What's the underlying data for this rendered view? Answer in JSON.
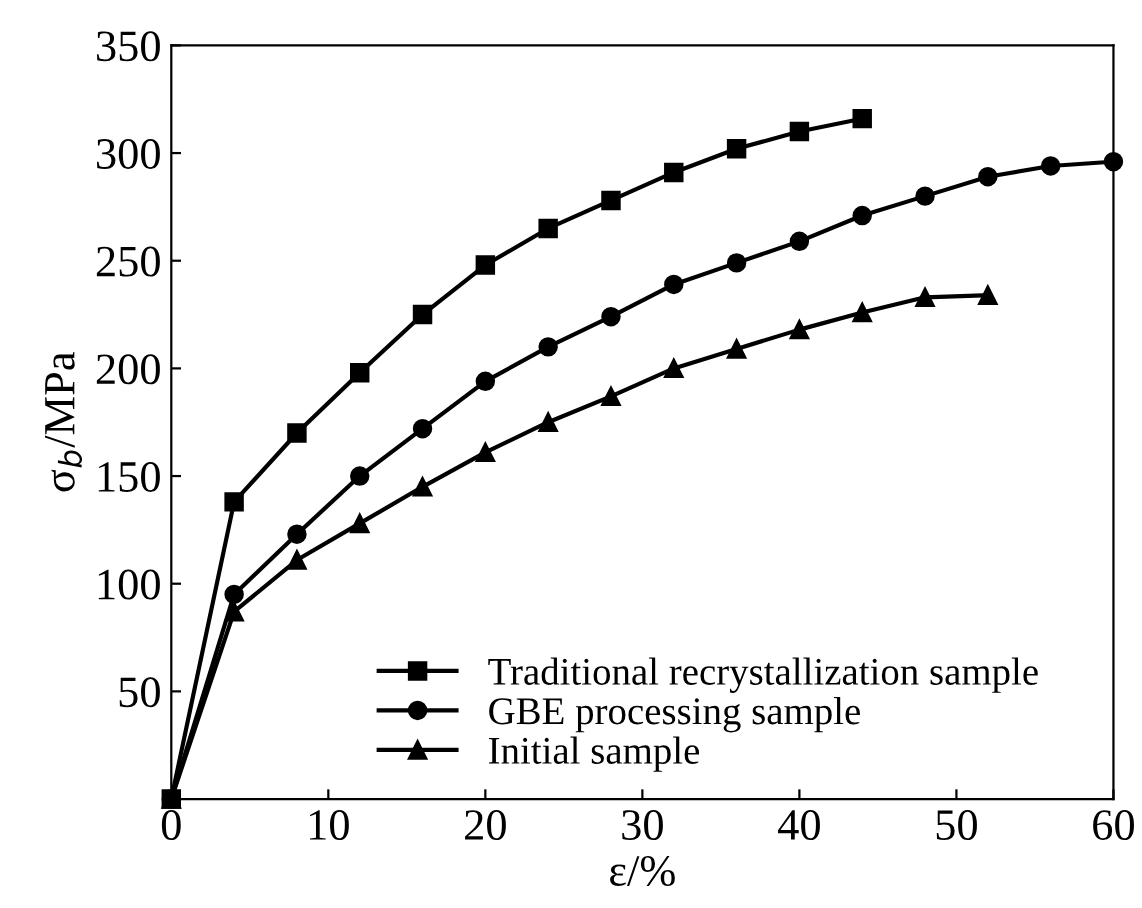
{
  "chart_data": {
    "type": "line",
    "xlabel": "ε/%",
    "ylabel": "σ$_{b}$/MPa",
    "xlim": [
      0,
      60
    ],
    "ylim": [
      0,
      350
    ],
    "xticks": [
      0,
      10,
      20,
      30,
      40,
      50,
      60
    ],
    "yticks": [
      50,
      100,
      150,
      200,
      250,
      300,
      350
    ],
    "grid": false,
    "legend": "bottom right",
    "line_style": "solid",
    "series": [
      {
        "name": "Traditional recrystallization sample",
        "color": "#000000",
        "marker": "square",
        "x": [
          0,
          4,
          8,
          12,
          16,
          20,
          24,
          28,
          32,
          36,
          40,
          44
        ],
        "values": [
          0,
          138,
          170,
          198,
          225,
          248,
          265,
          278,
          291,
          302,
          310,
          316
        ]
      },
      {
        "name": "GBE processing sample",
        "color": "#000000",
        "marker": "circle",
        "x": [
          0,
          4,
          8,
          12,
          16,
          20,
          24,
          28,
          32,
          36,
          40,
          44,
          48,
          52,
          56,
          60
        ],
        "values": [
          0,
          95,
          123,
          150,
          172,
          194,
          210,
          224,
          239,
          249,
          259,
          271,
          280,
          289,
          294,
          296
        ]
      },
      {
        "name": "Initial sample",
        "color": "#000000",
        "marker": "triangle",
        "x": [
          0,
          4,
          8,
          12,
          16,
          20,
          24,
          28,
          32,
          36,
          40,
          44,
          48,
          52
        ],
        "values": [
          0,
          87,
          111,
          128,
          145,
          161,
          175,
          187,
          200,
          209,
          218,
          226,
          233,
          234
        ]
      }
    ]
  }
}
